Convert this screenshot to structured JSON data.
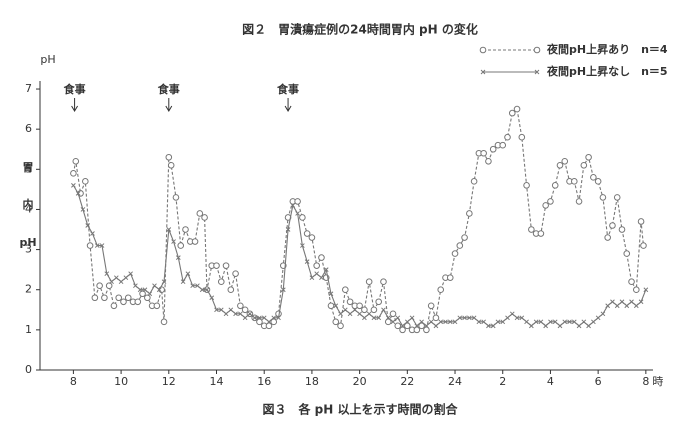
{
  "chart_data": {
    "type": "line",
    "title": "図２　胃潰瘍症例の24時間胃内 pH の変化",
    "caption": "図３　各 pH 以上を示す時間の割合",
    "y_label_top": "pH",
    "y_label": [
      "胃",
      "内",
      "pH"
    ],
    "x_unit": "時",
    "xlim": [
      6.6,
      32.3
    ],
    "ylim": [
      0,
      7.2
    ],
    "xticks": [
      8,
      10,
      12,
      14,
      16,
      18,
      20,
      22,
      24,
      {
        "value": 26,
        "label": "2"
      },
      {
        "value": 28,
        "label": "4"
      },
      {
        "value": 30,
        "label": "6"
      },
      {
        "value": 32,
        "label": "8"
      }
    ],
    "yticks": [
      0,
      1,
      2,
      3,
      4,
      5,
      6,
      7
    ],
    "legend": "top-right",
    "annotations": [
      {
        "text": "食事",
        "x": 8.05
      },
      {
        "text": "食事",
        "x": 12
      },
      {
        "text": "食事",
        "x": 17
      }
    ],
    "series": [
      {
        "name": "夜間pH上昇あり　n＝4",
        "color": "#777777",
        "dash": true,
        "marker": "circle",
        "x": [
          8.0,
          8.1,
          8.3,
          8.5,
          8.7,
          8.9,
          9.1,
          9.3,
          9.5,
          9.7,
          9.9,
          10.1,
          10.3,
          10.5,
          10.7,
          10.9,
          11.1,
          11.3,
          11.5,
          11.7,
          11.8,
          12.0,
          12.1,
          12.3,
          12.5,
          12.7,
          12.9,
          13.1,
          13.3,
          13.5,
          13.6,
          13.8,
          14.0,
          14.2,
          14.4,
          14.6,
          14.8,
          15.0,
          15.2,
          15.4,
          15.6,
          15.8,
          16.0,
          16.2,
          16.4,
          16.6,
          16.8,
          17.0,
          17.2,
          17.4,
          17.6,
          17.8,
          18.0,
          18.2,
          18.4,
          18.6,
          18.8,
          19.0,
          19.2,
          19.4,
          19.6,
          19.8,
          20.0,
          20.2,
          20.4,
          20.6,
          20.8,
          21.0,
          21.2,
          21.4,
          21.6,
          21.8,
          22.0,
          22.2,
          22.4,
          22.6,
          22.8,
          23.0,
          23.2,
          23.4,
          23.6,
          23.8,
          24.0,
          24.2,
          24.4,
          24.6,
          24.8,
          25.0,
          25.2,
          25.4,
          25.6,
          25.8,
          26.0,
          26.2,
          26.4,
          26.6,
          26.8,
          27.0,
          27.2,
          27.4,
          27.6,
          27.8,
          28.0,
          28.2,
          28.4,
          28.6,
          28.8,
          29.0,
          29.2,
          29.4,
          29.6,
          29.8,
          30.0,
          30.2,
          30.4,
          30.6,
          30.8,
          31.0,
          31.2,
          31.4,
          31.6,
          31.8,
          31.9
        ],
        "values": [
          4.9,
          5.2,
          4.4,
          4.7,
          3.1,
          1.8,
          2.1,
          1.8,
          2.1,
          1.6,
          1.8,
          1.7,
          1.8,
          1.7,
          1.7,
          1.9,
          1.8,
          1.6,
          1.6,
          2.0,
          1.2,
          5.3,
          5.1,
          4.3,
          3.1,
          3.5,
          3.2,
          3.2,
          3.9,
          3.8,
          2.0,
          2.6,
          2.6,
          2.2,
          2.6,
          2.0,
          2.4,
          1.6,
          1.5,
          1.4,
          1.3,
          1.2,
          1.1,
          1.1,
          1.2,
          1.4,
          2.6,
          3.8,
          4.2,
          4.2,
          3.8,
          3.4,
          3.3,
          2.6,
          2.8,
          2.3,
          1.6,
          1.2,
          1.1,
          2.0,
          1.7,
          1.6,
          1.6,
          1.5,
          2.2,
          1.5,
          1.7,
          2.2,
          1.2,
          1.4,
          1.1,
          1.0,
          1.1,
          1.0,
          1.0,
          1.1,
          1.0,
          1.6,
          1.3,
          2.0,
          2.3,
          2.3,
          2.9,
          3.1,
          3.3,
          3.9,
          4.7,
          5.4,
          5.4,
          5.2,
          5.5,
          5.6,
          5.6,
          5.8,
          6.4,
          6.5,
          5.8,
          4.6,
          3.5,
          3.4,
          3.4,
          4.1,
          4.2,
          4.6,
          5.1,
          5.2,
          4.7,
          4.7,
          4.2,
          5.1,
          5.3,
          4.8,
          4.7,
          4.3,
          3.3,
          3.6,
          4.3,
          3.5,
          2.9,
          2.2,
          2.0,
          3.7,
          3.1
        ]
      },
      {
        "name": "夜間pH上昇なし　n＝5",
        "color": "#777777",
        "dash": false,
        "marker": "x",
        "x": [
          8.0,
          8.2,
          8.4,
          8.6,
          8.8,
          9.0,
          9.2,
          9.4,
          9.6,
          9.8,
          10.0,
          10.2,
          10.4,
          10.6,
          10.8,
          11.0,
          11.2,
          11.4,
          11.6,
          11.8,
          12.0,
          12.2,
          12.4,
          12.6,
          12.8,
          13.0,
          13.2,
          13.4,
          13.6,
          13.8,
          14.0,
          14.2,
          14.4,
          14.6,
          14.8,
          15.0,
          15.2,
          15.4,
          15.6,
          15.8,
          16.0,
          16.2,
          16.4,
          16.6,
          16.8,
          17.0,
          17.2,
          17.4,
          17.6,
          17.8,
          18.0,
          18.2,
          18.4,
          18.6,
          18.8,
          19.0,
          19.2,
          19.4,
          19.6,
          19.8,
          20.0,
          20.2,
          20.4,
          20.6,
          20.8,
          21.0,
          21.2,
          21.4,
          21.6,
          21.8,
          22.0,
          22.2,
          22.4,
          22.6,
          22.8,
          23.0,
          23.2,
          23.4,
          23.6,
          23.8,
          24.0,
          24.2,
          24.4,
          24.6,
          24.8,
          25.0,
          25.2,
          25.4,
          25.6,
          25.8,
          26.0,
          26.2,
          26.4,
          26.6,
          26.8,
          27.0,
          27.2,
          27.4,
          27.6,
          27.8,
          28.0,
          28.2,
          28.4,
          28.6,
          28.8,
          29.0,
          29.2,
          29.4,
          29.6,
          29.8,
          30.0,
          30.2,
          30.4,
          30.6,
          30.8,
          31.0,
          31.2,
          31.4,
          31.6,
          31.8,
          32.0
        ],
        "values": [
          4.6,
          4.4,
          4.0,
          3.6,
          3.4,
          3.1,
          3.1,
          2.4,
          2.2,
          2.3,
          2.2,
          2.3,
          2.4,
          2.1,
          2.0,
          2.0,
          1.9,
          2.1,
          2.0,
          2.2,
          3.5,
          3.2,
          2.8,
          2.2,
          2.4,
          2.1,
          2.1,
          2.0,
          2.0,
          1.8,
          1.5,
          1.5,
          1.4,
          1.5,
          1.4,
          1.4,
          1.3,
          1.4,
          1.3,
          1.3,
          1.3,
          1.2,
          1.3,
          1.3,
          2.0,
          3.5,
          4.1,
          3.9,
          3.1,
          2.7,
          2.3,
          2.4,
          2.3,
          2.5,
          1.9,
          1.6,
          1.4,
          1.5,
          1.4,
          1.5,
          1.4,
          1.3,
          1.4,
          1.3,
          1.3,
          1.5,
          1.3,
          1.2,
          1.3,
          1.1,
          1.2,
          1.3,
          1.1,
          1.2,
          1.1,
          1.2,
          1.1,
          1.2,
          1.2,
          1.2,
          1.2,
          1.3,
          1.3,
          1.3,
          1.3,
          1.2,
          1.2,
          1.1,
          1.1,
          1.2,
          1.2,
          1.3,
          1.4,
          1.3,
          1.3,
          1.2,
          1.1,
          1.2,
          1.2,
          1.1,
          1.2,
          1.2,
          1.1,
          1.2,
          1.2,
          1.2,
          1.1,
          1.2,
          1.1,
          1.2,
          1.3,
          1.4,
          1.6,
          1.7,
          1.6,
          1.7,
          1.6,
          1.7,
          1.6,
          1.7,
          2.0
        ]
      }
    ]
  }
}
